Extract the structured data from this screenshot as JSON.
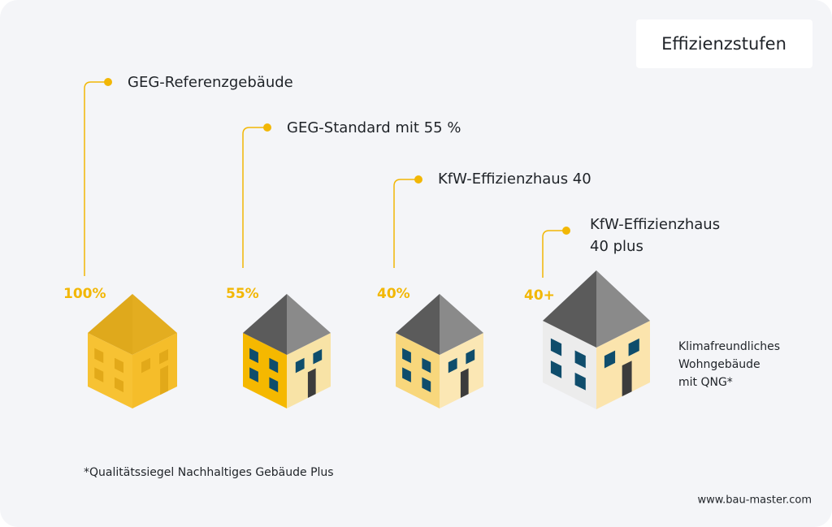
{
  "title": "Effizienzstufen",
  "levels": [
    {
      "label": [
        "GEG-Referenzgebäude"
      ],
      "percent": "100%"
    },
    {
      "label": [
        "GEG-Standard mit 55 %"
      ],
      "percent": "55%"
    },
    {
      "label": [
        "KfW-Effizienzhaus 40"
      ],
      "percent": "40%"
    },
    {
      "label": [
        "KfW-Effizienzhaus",
        "40 plus"
      ],
      "percent": "40+"
    }
  ],
  "side_note": [
    "Klimafreundliches",
    "Wohngebäude",
    "mit QNG*"
  ],
  "footnote": "*Qualitätssiegel Nachhaltiges Gebäude Plus",
  "website": "www.bau-master.com"
}
